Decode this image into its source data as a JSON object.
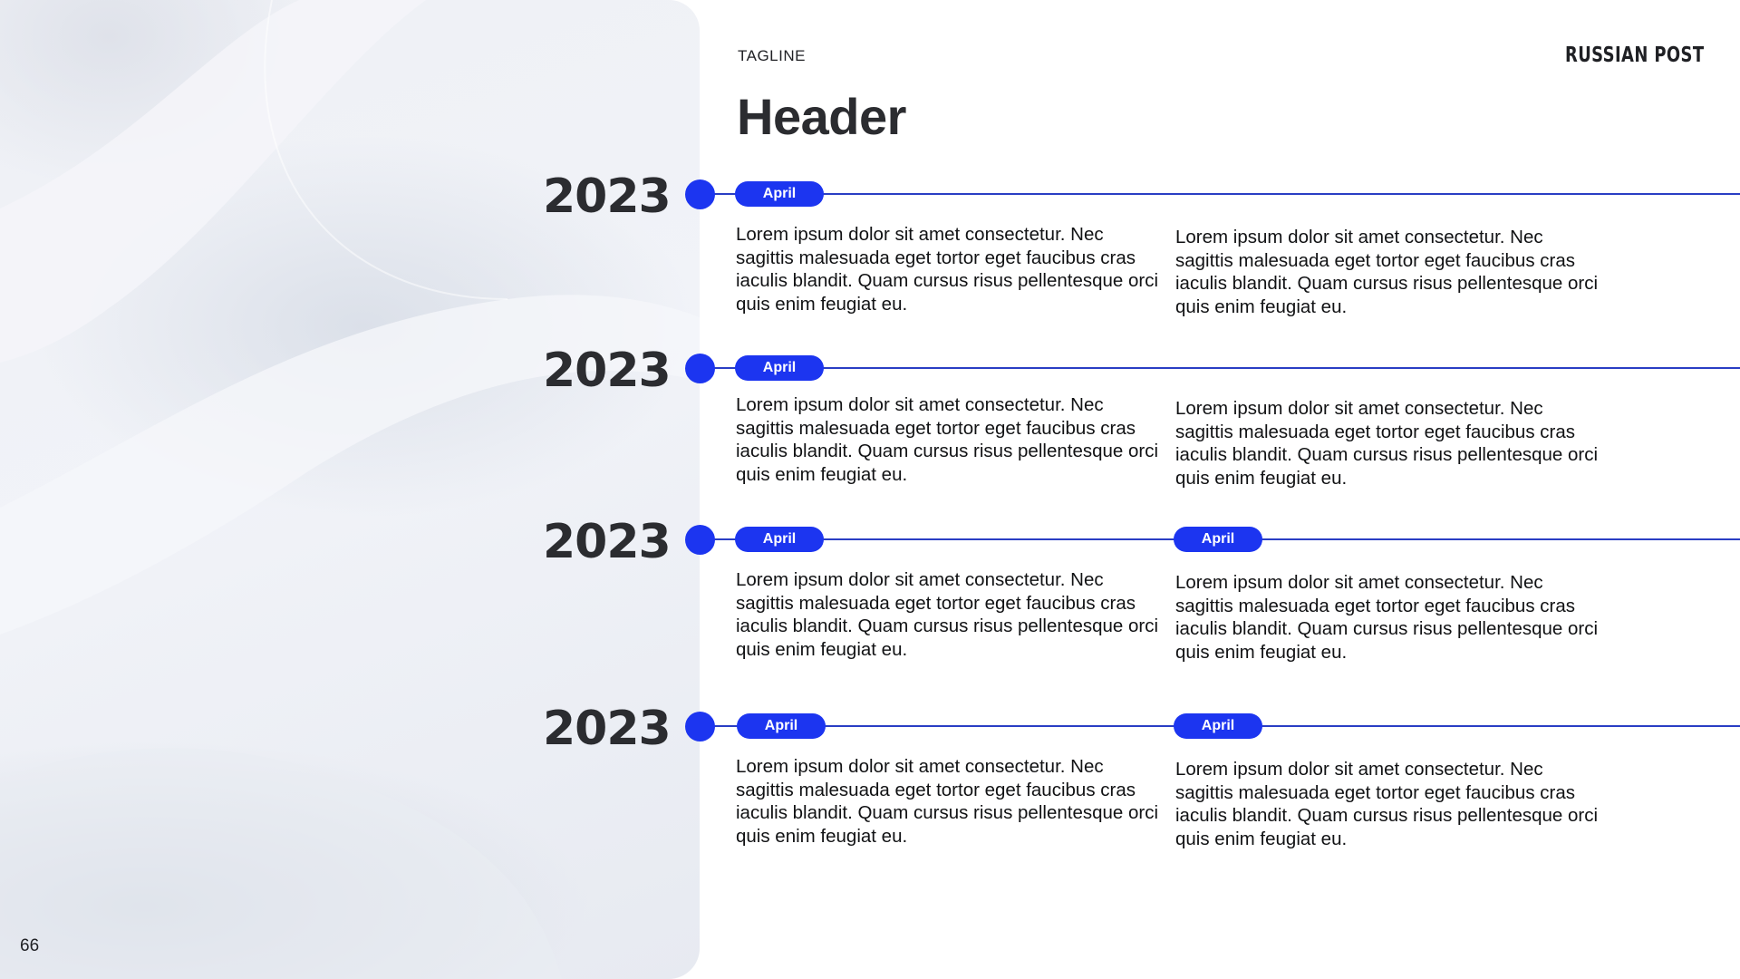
{
  "slide": {
    "tagline": "TAGLINE",
    "header": "Header",
    "logo": "RUSSIAN POST",
    "page_number": "66"
  },
  "timeline": [
    {
      "year": "2023",
      "left": {
        "label": "April",
        "text": "Lorem ipsum dolor sit amet consectetur. Nec sagittis malesuada eget tortor eget faucibus cras iaculis blandit. Quam cursus risus pellentesque orci quis enim feugiat eu."
      },
      "right": {
        "label": "",
        "text": "Lorem ipsum dolor sit amet consectetur. Nec sagittis malesuada eget tortor eget faucibus cras iaculis blandit. Quam cursus risus pellentesque orci quis enim feugiat eu."
      }
    },
    {
      "year": "2023",
      "left": {
        "label": "April",
        "text": "Lorem ipsum dolor sit amet consectetur. Nec sagittis malesuada eget tortor eget faucibus cras iaculis blandit. Quam cursus risus pellentesque orci quis enim feugiat eu."
      },
      "right": {
        "label": "",
        "text": "Lorem ipsum dolor sit amet consectetur. Nec sagittis malesuada eget tortor eget faucibus cras iaculis blandit. Quam cursus risus pellentesque orci quis enim feugiat eu."
      }
    },
    {
      "year": "2023",
      "left": {
        "label": "April",
        "text": "Lorem ipsum dolor sit amet consectetur. Nec sagittis malesuada eget tortor eget faucibus cras iaculis blandit. Quam cursus risus pellentesque orci quis enim feugiat eu."
      },
      "right": {
        "label": "April",
        "text": "Lorem ipsum dolor sit amet consectetur. Nec sagittis malesuada eget tortor eget faucibus cras iaculis blandit. Quam cursus risus pellentesque orci quis enim feugiat eu."
      }
    },
    {
      "year": "2023",
      "left": {
        "label": "April",
        "text": "Lorem ipsum dolor sit amet consectetur. Nec sagittis malesuada eget tortor eget faucibus cras iaculis blandit. Quam cursus risus pellentesque orci quis enim feugiat eu."
      },
      "right": {
        "label": "April",
        "text": "Lorem ipsum dolor sit amet consectetur. Nec sagittis malesuada eget tortor eget faucibus cras iaculis blandit. Quam cursus risus pellentesque orci quis enim feugiat eu."
      }
    }
  ],
  "colors": {
    "accent": "#1c35f0",
    "timeline_line": "#2a3ec4",
    "text": "#1f2024"
  }
}
